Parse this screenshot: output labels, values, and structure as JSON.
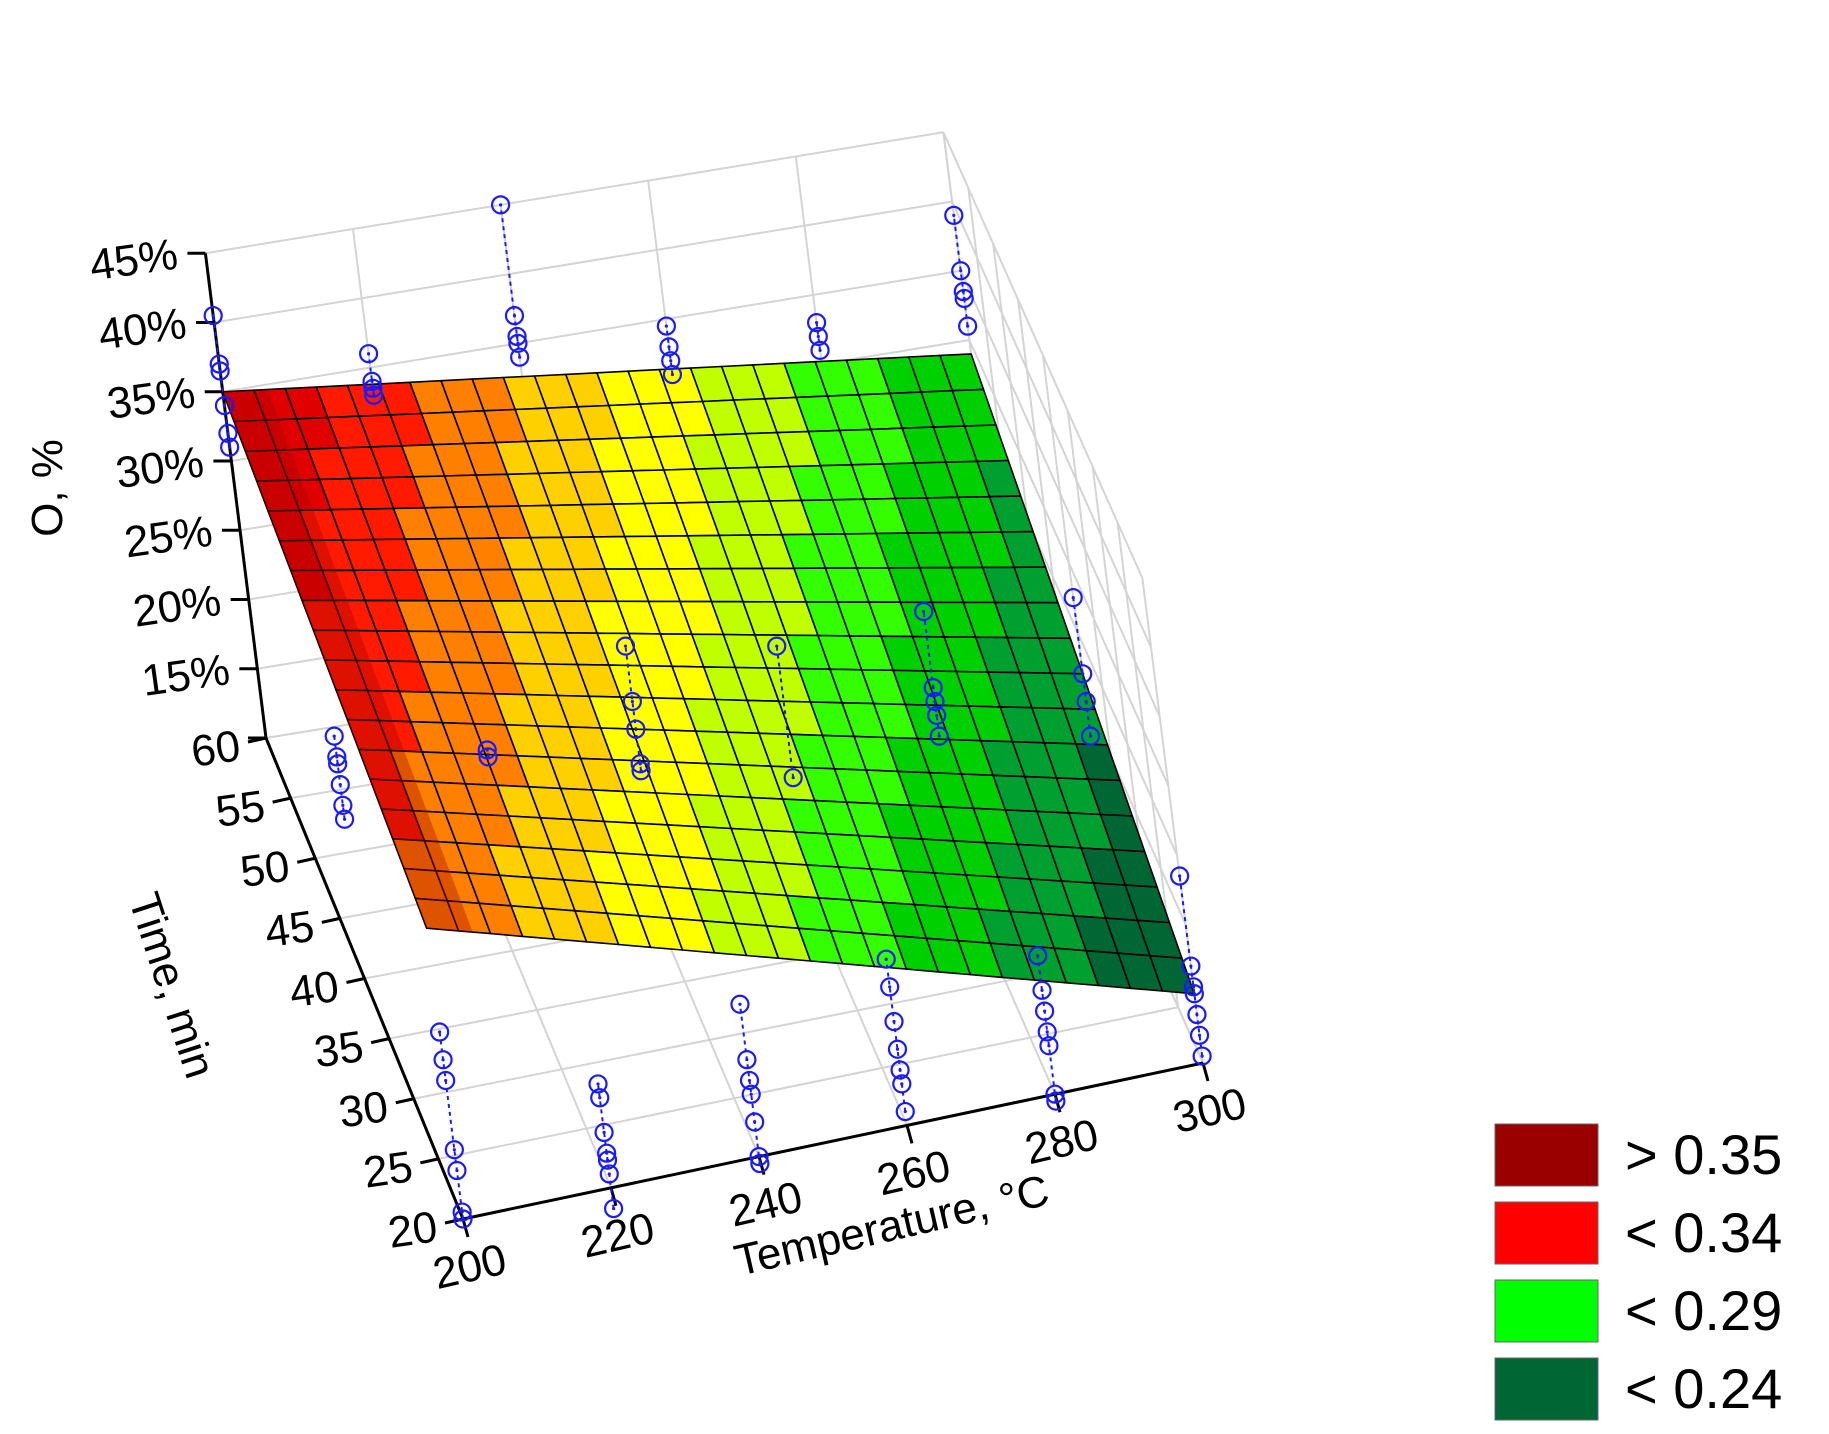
{
  "chart_data": {
    "type": "surface3d",
    "xlabel": "Temperature, °C",
    "ylabel": "Time, min",
    "zlabel": "O, %",
    "x_ticks": [
      "200",
      "220",
      "240",
      "260",
      "280",
      "300"
    ],
    "y_ticks": [
      "20",
      "25",
      "30",
      "35",
      "40",
      "45",
      "50",
      "55",
      "60"
    ],
    "z_ticks": [
      "15%",
      "20%",
      "25%",
      "30%",
      "35%",
      "40%",
      "45%"
    ],
    "xlim": [
      200,
      300
    ],
    "ylim": [
      20,
      60
    ],
    "zlim": [
      10,
      45
    ],
    "grid": true,
    "legend_position": "bottom-right",
    "legend": [
      {
        "label": "> 0.35",
        "color": "#9b0000"
      },
      {
        "label": "< 0.34",
        "color": "#ff0000"
      },
      {
        "label": "< 0.29",
        "color": "#00ff00"
      },
      {
        "label": "< 0.24",
        "color": "#006633"
      }
    ],
    "surface": {
      "corners": [
        {
          "x": 200,
          "y": 60,
          "z": 35
        },
        {
          "x": 300,
          "y": 60,
          "z": 29
        },
        {
          "x": 200,
          "y": 20,
          "z": 31
        },
        {
          "x": 300,
          "y": 20,
          "z": 15
        }
      ],
      "color_ramp": [
        "#e00000",
        "#ff1a00",
        "#ff8000",
        "#ffd000",
        "#ffff00",
        "#c0ff00",
        "#33ff00",
        "#00d000",
        "#00a030",
        "#006633"
      ]
    },
    "observations": [
      {
        "x": 200,
        "y": 60,
        "z": [
          40.5,
          37,
          36.5,
          34,
          32,
          31
        ]
      },
      {
        "x": 220,
        "y": 60,
        "z": [
          36,
          34,
          33.5,
          33
        ]
      },
      {
        "x": 240,
        "y": 60,
        "z": [
          45,
          37,
          35.5,
          35,
          34
        ]
      },
      {
        "x": 260,
        "y": 60,
        "z": [
          34.5,
          33,
          32,
          31
        ]
      },
      {
        "x": 280,
        "y": 60,
        "z": [
          33,
          32,
          31
        ]
      },
      {
        "x": 300,
        "y": 60,
        "z": [
          39,
          35,
          33.5,
          33,
          31
        ]
      },
      {
        "x": 200,
        "y": 40,
        "z": [
          27.5,
          26,
          25.5,
          24,
          22.5,
          21.5
        ]
      },
      {
        "x": 220,
        "y": 40,
        "z": [
          24.5,
          24
        ]
      },
      {
        "x": 240,
        "y": 40,
        "z": [
          30,
          26,
          24,
          21.5,
          21
        ]
      },
      {
        "x": 260,
        "y": 40,
        "z": [
          28,
          18.5
        ]
      },
      {
        "x": 280,
        "y": 40,
        "z": [
          28.5,
          23,
          22,
          21,
          19.5
        ]
      },
      {
        "x": 300,
        "y": 40,
        "z": [
          27.5,
          22,
          20,
          17.5
        ]
      },
      {
        "x": 200,
        "y": 20,
        "z": [
          23.5,
          21.5,
          20,
          15,
          13.5,
          10.5,
          10
        ]
      },
      {
        "x": 220,
        "y": 20,
        "z": [
          17.5,
          16.5,
          14,
          12.5,
          12,
          11,
          8.5
        ]
      },
      {
        "x": 240,
        "y": 20,
        "z": [
          21,
          17,
          15.5,
          14.5,
          12.5,
          10,
          9.5
        ]
      },
      {
        "x": 260,
        "y": 20,
        "z": [
          22,
          20,
          17.5,
          15.5,
          14,
          13,
          11
        ]
      },
      {
        "x": 280,
        "y": 20,
        "z": [
          20,
          17.5,
          16,
          14.5,
          13.5,
          10,
          9.5
        ]
      },
      {
        "x": 300,
        "y": 20,
        "z": [
          23.5,
          17,
          15.5,
          15,
          13.5,
          12,
          10.5
        ]
      }
    ]
  }
}
